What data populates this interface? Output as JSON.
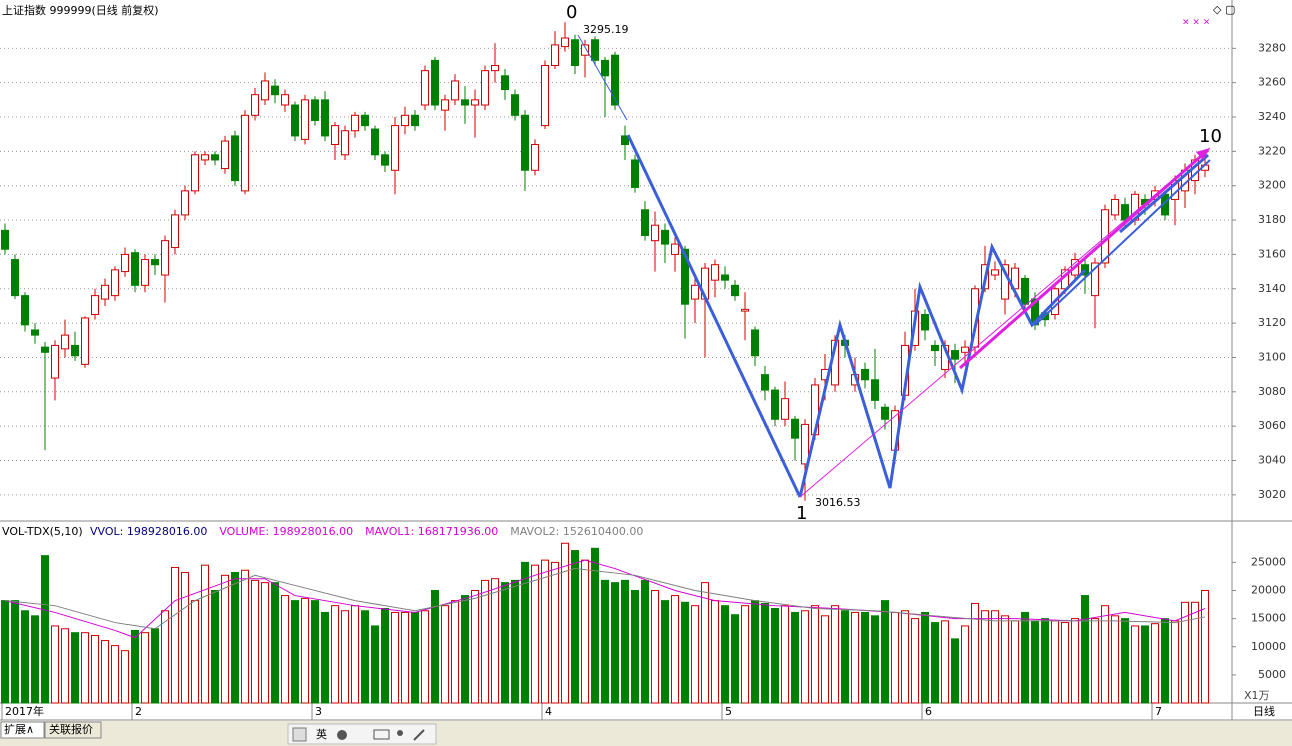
{
  "chart_data": [
    {
      "type": "candlestick",
      "title": "上证指数 999999(日线 前复权)",
      "up_color": "#d40000",
      "down_color": "#008000",
      "ylim": [
        3010,
        3296.5
      ],
      "yticks": [
        3020,
        3040,
        3060,
        3080,
        3100,
        3120,
        3140,
        3160,
        3180,
        3200,
        3220,
        3240,
        3260,
        3280
      ],
      "grid": true,
      "xticks": [
        {
          "value": 0,
          "label": "2017年"
        },
        {
          "value": 13,
          "label": "2"
        },
        {
          "value": 31,
          "label": "3"
        },
        {
          "value": 54,
          "label": "4"
        },
        {
          "value": 72,
          "label": "5"
        },
        {
          "value": 92,
          "label": "6"
        },
        {
          "value": 115,
          "label": "7"
        }
      ],
      "open": [
        3174,
        3157,
        3136,
        3116,
        3106,
        3088,
        3105,
        3107,
        3096,
        3125,
        3134,
        3136,
        3150,
        3161,
        3142,
        3157,
        3148,
        3164,
        3183,
        3197,
        3215,
        3218,
        3210,
        3229,
        3197,
        3241,
        3250,
        3258,
        3247,
        3247,
        3227,
        3250,
        3250,
        3224,
        3218,
        3232,
        3241,
        3233,
        3218,
        3209,
        3235,
        3241,
        3247,
        3273,
        3244,
        3250,
        3250,
        3247,
        3247,
        3267,
        3264,
        3253,
        3241,
        3209,
        3235,
        3270,
        3281,
        3285,
        3276,
        3285,
        3273,
        3276,
        3229,
        3215,
        3186,
        3168,
        3174,
        3160,
        3163,
        3134,
        3134,
        3145,
        3148,
        3142,
        3127,
        3116,
        3090,
        3081,
        3064,
        3064,
        3038,
        3055,
        3087,
        3084,
        3110,
        3084,
        3093,
        3087,
        3071,
        3046,
        3078,
        3107,
        3125,
        3107,
        3093,
        3104,
        3103,
        3106,
        3140,
        3148,
        3134,
        3140,
        3146,
        3134,
        3126,
        3125,
        3140,
        3148,
        3154,
        3136,
        3155,
        3183,
        3189,
        3180,
        3192,
        3192,
        3195,
        3192,
        3197,
        3203,
        3209
      ],
      "close": [
        3163,
        3136,
        3119,
        3113,
        3103,
        3107,
        3113,
        3101,
        3123,
        3136,
        3142,
        3151,
        3160,
        3142,
        3157,
        3154,
        3168,
        3183,
        3197,
        3218,
        3218,
        3215,
        3226,
        3203,
        3241,
        3253,
        3261,
        3253,
        3253,
        3229,
        3250,
        3238,
        3229,
        3235,
        3232,
        3241,
        3235,
        3218,
        3212,
        3235,
        3241,
        3235,
        3267,
        3247,
        3250,
        3261,
        3247,
        3250,
        3267,
        3270,
        3256,
        3241,
        3209,
        3224,
        3270,
        3282,
        3286,
        3270,
        3282,
        3273,
        3264,
        3247,
        3224,
        3199,
        3171,
        3177,
        3166,
        3166,
        3131,
        3142,
        3152,
        3154,
        3145,
        3136,
        3128,
        3101,
        3081,
        3064,
        3076,
        3053,
        3061,
        3084,
        3093,
        3110,
        3107,
        3090,
        3087,
        3075,
        3064,
        3069,
        3107,
        3127,
        3116,
        3104,
        3107,
        3099,
        3106,
        3140,
        3154,
        3151,
        3154,
        3152,
        3131,
        3119,
        3122,
        3140,
        3151,
        3157,
        3148,
        3155,
        3186,
        3192,
        3180,
        3195,
        3189,
        3197,
        3183,
        3203,
        3209,
        3215,
        3212
      ],
      "high": [
        3178,
        3160,
        3138,
        3120,
        3109,
        3110,
        3122,
        3115,
        3124,
        3140,
        3146,
        3153,
        3164,
        3163,
        3160,
        3160,
        3171,
        3186,
        3200,
        3220,
        3220,
        3220,
        3229,
        3232,
        3244,
        3257,
        3266,
        3262,
        3256,
        3249,
        3253,
        3252,
        3255,
        3237,
        3235,
        3243,
        3243,
        3235,
        3220,
        3240,
        3246,
        3244,
        3270,
        3275,
        3253,
        3265,
        3258,
        3256,
        3270,
        3283,
        3268,
        3256,
        3244,
        3227,
        3273,
        3290,
        3295.19,
        3288,
        3285,
        3287,
        3275,
        3278,
        3235,
        3218,
        3191,
        3185,
        3178,
        3170,
        3165,
        3146,
        3155,
        3157,
        3153,
        3145,
        3138,
        3118,
        3095,
        3083,
        3086,
        3066,
        3064,
        3088,
        3102,
        3113,
        3113,
        3100,
        3097,
        3105,
        3073,
        3072,
        3115,
        3140,
        3128,
        3110,
        3110,
        3108,
        3110,
        3142,
        3165,
        3156,
        3157,
        3155,
        3148,
        3138,
        3128,
        3142,
        3153,
        3161,
        3158,
        3158,
        3189,
        3195,
        3193,
        3197,
        3195,
        3200,
        3197,
        3206,
        3213,
        3218,
        3221
      ],
      "low": [
        3160,
        3134,
        3115,
        3108,
        3046,
        3075,
        3100,
        3098,
        3094,
        3122,
        3130,
        3133,
        3147,
        3138,
        3138,
        3148,
        3132,
        3160,
        3180,
        3195,
        3212,
        3212,
        3207,
        3200,
        3195,
        3238,
        3247,
        3248,
        3243,
        3226,
        3224,
        3235,
        3226,
        3215,
        3215,
        3228,
        3232,
        3215,
        3208,
        3195,
        3230,
        3232,
        3244,
        3244,
        3232,
        3247,
        3236,
        3228,
        3244,
        3260,
        3250,
        3238,
        3197,
        3206,
        3233,
        3268,
        3278,
        3265,
        3263,
        3270,
        3240,
        3244,
        3215,
        3196,
        3168,
        3150,
        3155,
        3150,
        3111,
        3120,
        3100,
        3135,
        3140,
        3133,
        3110,
        3095,
        3075,
        3060,
        3060,
        3040,
        3016.53,
        3052,
        3075,
        3080,
        3100,
        3080,
        3082,
        3070,
        3058,
        3038,
        3075,
        3104,
        3110,
        3095,
        3088,
        3085,
        3095,
        3100,
        3138,
        3145,
        3125,
        3135,
        3128,
        3116,
        3118,
        3122,
        3137,
        3145,
        3137,
        3117,
        3152,
        3180,
        3175,
        3177,
        3183,
        3188,
        3180,
        3177,
        3187,
        3195,
        3205
      ],
      "annotations": [
        "0",
        "3295.19",
        "1",
        "3016.53",
        "10"
      ]
    },
    {
      "type": "bar",
      "title": "VOL-TDX(5,10)",
      "unit_label": "X1万",
      "up_color": "#d40000",
      "down_color": "#008000",
      "indicators": [
        {
          "text": "VVOL: 198928016.00",
          "color": "#000080"
        },
        {
          "text": "VOLUME: 198928016.00",
          "color": "#d400d4"
        },
        {
          "text": "MAVOL1: 168171936.00",
          "color": "#d400d4"
        },
        {
          "text": "MAVOL2: 152610400.00",
          "color": "#808080"
        }
      ],
      "ylim": [
        0,
        32000
      ],
      "yticks": [
        5000,
        10000,
        15000,
        20000,
        25000
      ],
      "values": [
        18200,
        18200,
        16400,
        15500,
        26200,
        13700,
        13200,
        12500,
        12500,
        12000,
        11100,
        10200,
        9300,
        12900,
        12500,
        13200,
        16400,
        24100,
        23200,
        18200,
        24500,
        20000,
        22700,
        23200,
        23600,
        21800,
        21400,
        21400,
        19100,
        18200,
        18600,
        18200,
        16100,
        17300,
        16400,
        17300,
        16400,
        13700,
        16800,
        16100,
        16100,
        16100,
        16400,
        20000,
        17300,
        18200,
        19100,
        20000,
        21800,
        22100,
        21400,
        21800,
        25000,
        24500,
        25400,
        25000,
        28400,
        27100,
        25400,
        27500,
        21800,
        21400,
        21800,
        20000,
        21800,
        20000,
        18200,
        19100,
        17900,
        17300,
        21400,
        18200,
        17300,
        15700,
        17300,
        18200,
        17700,
        16800,
        17300,
        16100,
        16400,
        17300,
        15500,
        17300,
        16400,
        16100,
        16100,
        15500,
        18200,
        16100,
        16400,
        15000,
        16100,
        14300,
        14600,
        11400,
        13700,
        17700,
        16400,
        16400,
        15500,
        14600,
        16100,
        14600,
        15000,
        14600,
        14300,
        15000,
        19100,
        15000,
        17300,
        15500,
        15000,
        13700,
        13700,
        14100,
        15000,
        14600,
        17900,
        17900,
        20000
      ],
      "series": [
        {
          "name": "MAVOL1",
          "color": "#d400d4",
          "x": [
            0,
            5,
            11,
            13,
            17,
            23,
            26,
            29,
            35,
            41,
            47,
            53,
            58,
            61,
            67,
            71,
            77,
            83,
            89,
            95,
            101,
            107,
            112,
            117,
            120
          ],
          "values": [
            18200,
            16100,
            12900,
            11600,
            18200,
            22100,
            22100,
            19100,
            17300,
            16100,
            19100,
            22700,
            25400,
            23900,
            20000,
            18200,
            17300,
            16800,
            16100,
            15000,
            15000,
            14600,
            16100,
            14600,
            16800
          ]
        },
        {
          "name": "MAVOL2",
          "color": "#808080",
          "x": [
            0,
            5,
            11,
            15,
            19,
            25,
            29,
            35,
            41,
            47,
            53,
            57,
            63,
            69,
            75,
            81,
            87,
            93,
            99,
            105,
            111,
            117,
            120
          ],
          "values": [
            18200,
            17300,
            14300,
            13200,
            18200,
            22700,
            20900,
            18200,
            16400,
            18600,
            21800,
            23900,
            22700,
            20000,
            18200,
            16800,
            16400,
            15500,
            14600,
            14600,
            14600,
            14300,
            15300
          ]
        }
      ]
    }
  ],
  "ui": {
    "period": "日线",
    "tabs": [
      "扩展∧",
      "关联报价"
    ],
    "toolbar": [
      "英"
    ]
  }
}
